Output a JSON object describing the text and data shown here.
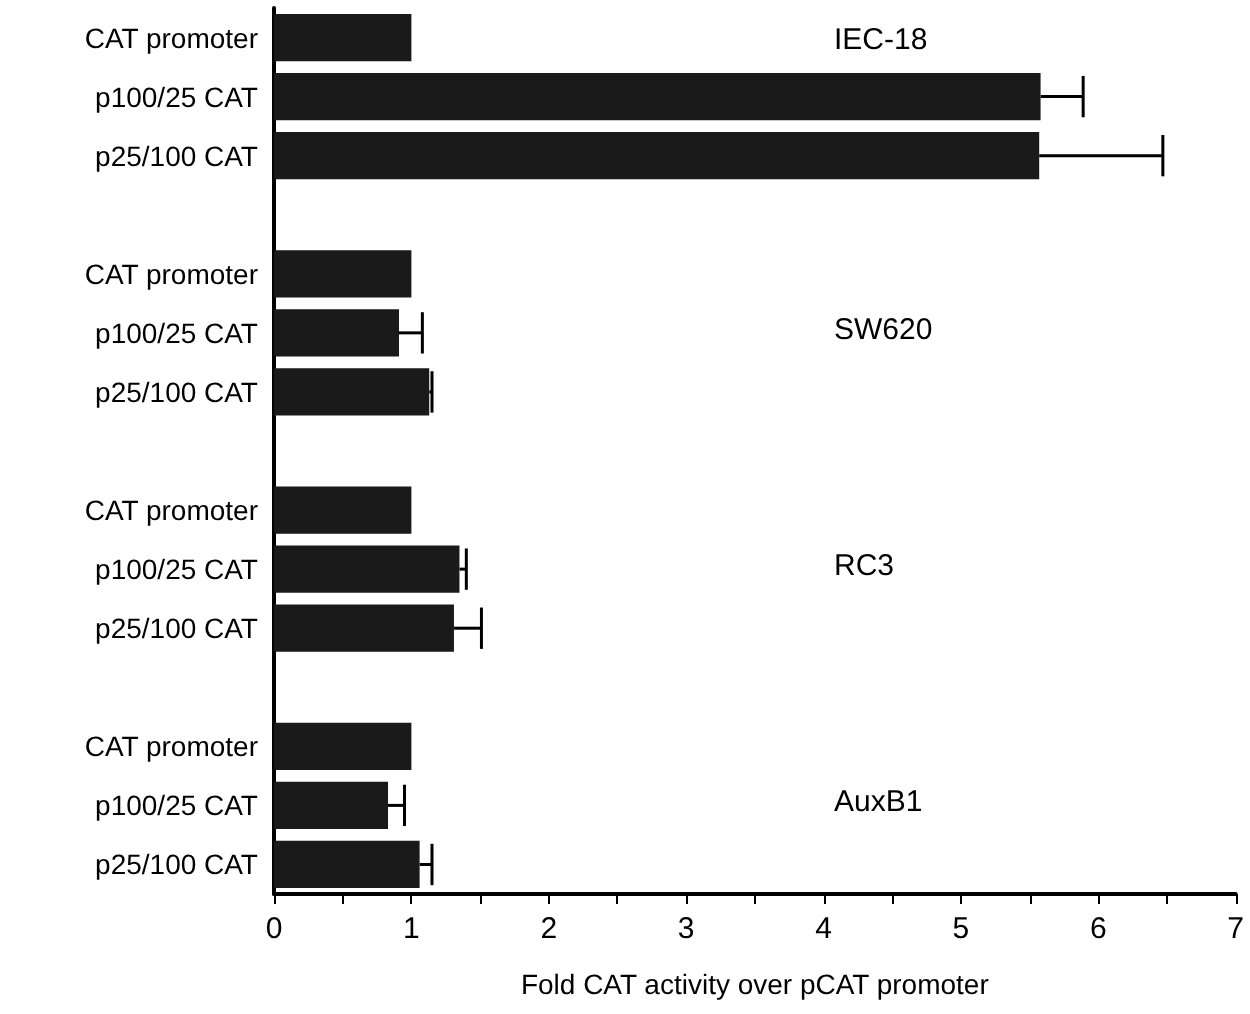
{
  "chart_data": {
    "type": "bar",
    "orientation": "horizontal",
    "xlabel": "Fold CAT activity over pCAT promoter",
    "categories": [
      "CAT promoter",
      "p100/25 CAT",
      "p25/100 CAT",
      null,
      "CAT promoter",
      "p100/25 CAT",
      "p25/100 CAT",
      null,
      "CAT promoter",
      "p100/25 CAT",
      "p25/100 CAT",
      null,
      "CAT promoter",
      "p100/25 CAT",
      "p25/100 CAT"
    ],
    "values": [
      1.0,
      5.58,
      5.57,
      null,
      1.0,
      0.91,
      1.13,
      null,
      1.0,
      1.35,
      1.31,
      null,
      1.0,
      0.83,
      1.06
    ],
    "errors": [
      null,
      [
        5.58,
        5.89
      ],
      [
        5.57,
        6.47
      ],
      null,
      null,
      [
        0.91,
        1.08
      ],
      [
        1.13,
        1.15
      ],
      null,
      null,
      [
        1.35,
        1.4
      ],
      [
        1.31,
        1.51
      ],
      null,
      null,
      [
        0.83,
        0.95
      ],
      [
        1.06,
        1.15
      ]
    ],
    "color": "#1a1a1a",
    "xlim": [
      0,
      7
    ],
    "xticks": [
      0,
      {
        "value": 0.5,
        "label": null
      },
      1,
      {
        "value": 1.5,
        "label": null
      },
      2,
      {
        "value": 2.5,
        "label": null
      },
      3,
      {
        "value": 3.5,
        "label": null
      },
      4,
      {
        "value": 4.5,
        "label": null
      },
      5,
      {
        "value": 5.5,
        "label": null
      },
      6,
      {
        "value": 6.5,
        "label": null
      },
      7
    ],
    "annotations": [
      "IEC-18",
      "SW620",
      "RC3",
      "AuxB1"
    ]
  }
}
